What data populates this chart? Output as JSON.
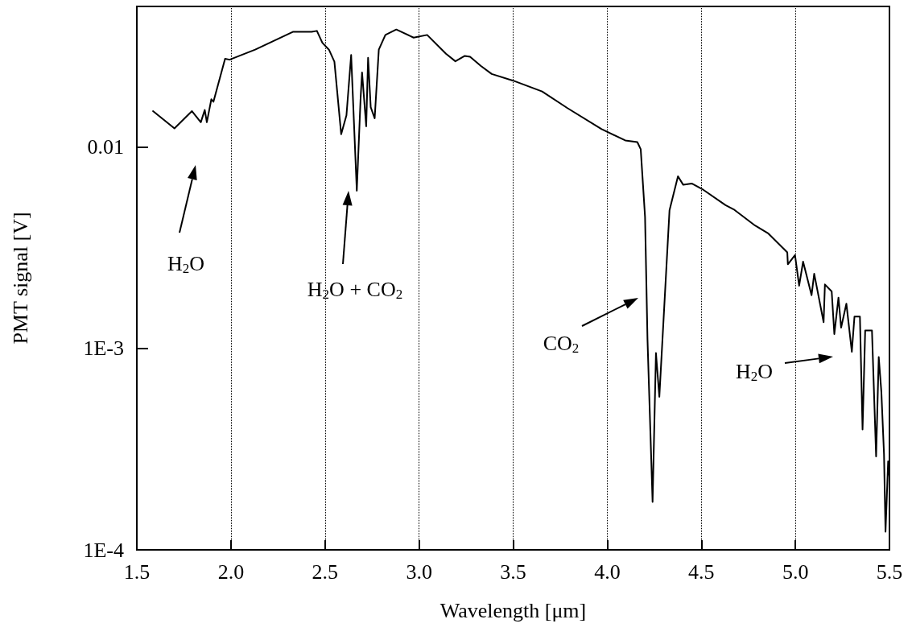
{
  "chart_data": {
    "type": "line",
    "xlabel": "Wavelength [μm]",
    "ylabel": "PMT signal [V]",
    "xlim": [
      1.5,
      5.5
    ],
    "xticks": [
      1.5,
      {
        "value": 2,
        "label": "2.0"
      },
      2.5,
      {
        "value": 3,
        "label": "3.0"
      },
      3.5,
      {
        "value": 4,
        "label": "4.0"
      },
      4.5,
      {
        "value": 5,
        "label": "5.0"
      },
      5.5
    ],
    "ylim": [
      0.0001,
      0.05
    ],
    "yticks": [
      {
        "value": 0.0001,
        "label": "1E-4"
      },
      {
        "value": 0.001,
        "label": "1E-3"
      },
      0.01
    ],
    "log": "y",
    "grid": "x",
    "marker": "none",
    "line_style": "solid",
    "annotations": [
      "H$_{2}$O",
      "H$_{2}$O + CO$_{2}$",
      "CO$_{2}$",
      "H$_{2}$O"
    ],
    "series": [
      {
        "color": "#000000",
        "x": [
          1.586,
          1.7,
          1.793,
          1.84,
          1.861,
          1.872,
          1.896,
          1.907,
          1.969,
          1.993,
          2.129,
          2.329,
          2.429,
          2.457,
          2.486,
          2.521,
          2.55,
          2.586,
          2.614,
          2.639,
          2.669,
          2.689,
          2.697,
          2.719,
          2.729,
          2.743,
          2.764,
          2.786,
          2.821,
          2.879,
          2.971,
          3.043,
          3.143,
          3.193,
          3.243,
          3.271,
          3.329,
          3.386,
          3.5,
          3.654,
          3.79,
          3.97,
          4.096,
          4.16,
          4.178,
          4.201,
          4.214,
          4.241,
          4.259,
          4.277,
          4.331,
          4.376,
          4.404,
          4.449,
          4.512,
          4.629,
          4.672,
          4.786,
          4.857,
          4.957,
          4.96,
          4.998,
          5.02,
          5.041,
          5.086,
          5.1,
          5.15,
          5.157,
          5.193,
          5.207,
          5.229,
          5.243,
          5.271,
          5.3,
          5.314,
          5.343,
          5.357,
          5.371,
          5.407,
          5.429,
          5.443,
          5.457,
          5.471,
          5.479,
          5.493,
          5.5
        ],
        "values": [
          0.0151,
          0.0124,
          0.0151,
          0.0133,
          0.0153,
          0.0133,
          0.0173,
          0.0168,
          0.0275,
          0.0272,
          0.0305,
          0.0374,
          0.0374,
          0.0378,
          0.033,
          0.0305,
          0.0266,
          0.0116,
          0.0144,
          0.0287,
          0.00608,
          0.0173,
          0.0235,
          0.0127,
          0.0278,
          0.0158,
          0.0139,
          0.0305,
          0.0361,
          0.0384,
          0.035,
          0.0361,
          0.0291,
          0.0267,
          0.0284,
          0.0281,
          0.0253,
          0.0231,
          0.0214,
          0.0189,
          0.0156,
          0.0123,
          0.0108,
          0.0106,
          0.00977,
          0.0045,
          0.00111,
          0.000173,
          0.00095,
          0.000576,
          0.00486,
          0.00716,
          0.0065,
          0.0066,
          0.00613,
          0.00515,
          0.00491,
          0.00408,
          0.00372,
          0.003,
          0.00262,
          0.00291,
          0.00205,
          0.0027,
          0.00184,
          0.00235,
          0.00135,
          0.00208,
          0.00192,
          0.00118,
          0.00179,
          0.00127,
          0.00167,
          0.000964,
          0.00144,
          0.00144,
          0.000396,
          0.00123,
          0.00123,
          0.000291,
          0.000908,
          0.000608,
          0.000299,
          0.000123,
          0.000275,
          0.00023
        ]
      }
    ]
  }
}
